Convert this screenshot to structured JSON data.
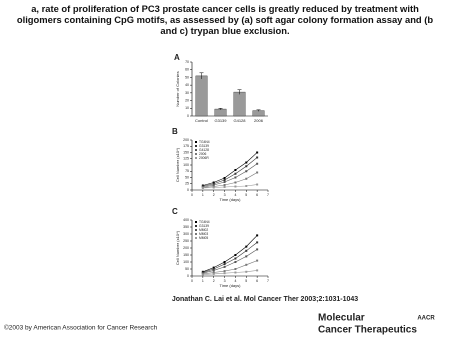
{
  "title": "a, rate of proliferation of PC3 prostate cancer cells is greatly reduced by treatment with oligomers containing CpG motifs, as assessed by (a) soft agar colony formation assay and (b and c) trypan blue exclusion.",
  "citation": "Jonathan C. Lai et al. Mol Cancer Ther 2003;2:1031-1043",
  "copyright": "©2003 by American Association for Cancer Research",
  "journal": [
    "Molecular",
    "Cancer Therapeutics"
  ],
  "publisher": "AACR",
  "chart_data": [
    {
      "type": "bar",
      "panel_label": "A",
      "y_label": "Number of Colonies",
      "categories": [
        "Control",
        "G3139",
        "G4128",
        "2006"
      ],
      "values": [
        52,
        9,
        31,
        7
      ],
      "errors": [
        4,
        1,
        3,
        1
      ],
      "color": "#9a9a9a",
      "ylim": [
        0,
        70
      ],
      "yticks": [
        0,
        10,
        20,
        30,
        40,
        50,
        60,
        70
      ]
    },
    {
      "type": "line",
      "panel_label": "B",
      "x_label": "Time (days)",
      "y_label": "Cell Number (x10⁴)",
      "x": [
        1,
        2,
        3,
        4,
        5,
        6
      ],
      "xlim": [
        0,
        7
      ],
      "xticks": [
        0,
        1,
        2,
        3,
        4,
        5,
        6,
        7
      ],
      "ylim": [
        0,
        200
      ],
      "yticks": [
        0,
        25,
        50,
        75,
        100,
        125,
        150,
        175,
        200
      ],
      "series": [
        {
          "name": "TG4N4",
          "color": "#000000",
          "values": [
            18,
            30,
            48,
            80,
            110,
            150
          ]
        },
        {
          "name": "G3139",
          "color": "#333333",
          "values": [
            15,
            25,
            40,
            65,
            95,
            130
          ]
        },
        {
          "name": "G4128",
          "color": "#555555",
          "values": [
            12,
            20,
            32,
            50,
            75,
            105
          ]
        },
        {
          "name": "2006",
          "color": "#777777",
          "values": [
            10,
            14,
            20,
            30,
            45,
            70
          ]
        },
        {
          "name": "2006R",
          "color": "#999999",
          "values": [
            8,
            10,
            12,
            14,
            16,
            22
          ]
        }
      ]
    },
    {
      "type": "line",
      "panel_label": "C",
      "x_label": "Time (days)",
      "y_label": "Cell Number (x10⁴)",
      "x": [
        1,
        2,
        3,
        4,
        5,
        6
      ],
      "xlim": [
        0,
        7
      ],
      "xticks": [
        0,
        1,
        2,
        3,
        4,
        5,
        6,
        7
      ],
      "ylim": [
        0,
        400
      ],
      "yticks": [
        0,
        50,
        100,
        150,
        200,
        250,
        300,
        350,
        400
      ],
      "series": [
        {
          "name": "TG4N4",
          "color": "#000000",
          "values": [
            30,
            60,
            100,
            150,
            210,
            290
          ]
        },
        {
          "name": "G3139",
          "color": "#333333",
          "values": [
            25,
            50,
            85,
            125,
            180,
            240
          ]
        },
        {
          "name": "MM02",
          "color": "#555555",
          "values": [
            20,
            40,
            65,
            100,
            140,
            190
          ]
        },
        {
          "name": "MM03",
          "color": "#777777",
          "values": [
            15,
            25,
            35,
            50,
            80,
            110
          ]
        },
        {
          "name": "MM05",
          "color": "#999999",
          "values": [
            10,
            15,
            20,
            25,
            30,
            40
          ]
        }
      ]
    }
  ]
}
